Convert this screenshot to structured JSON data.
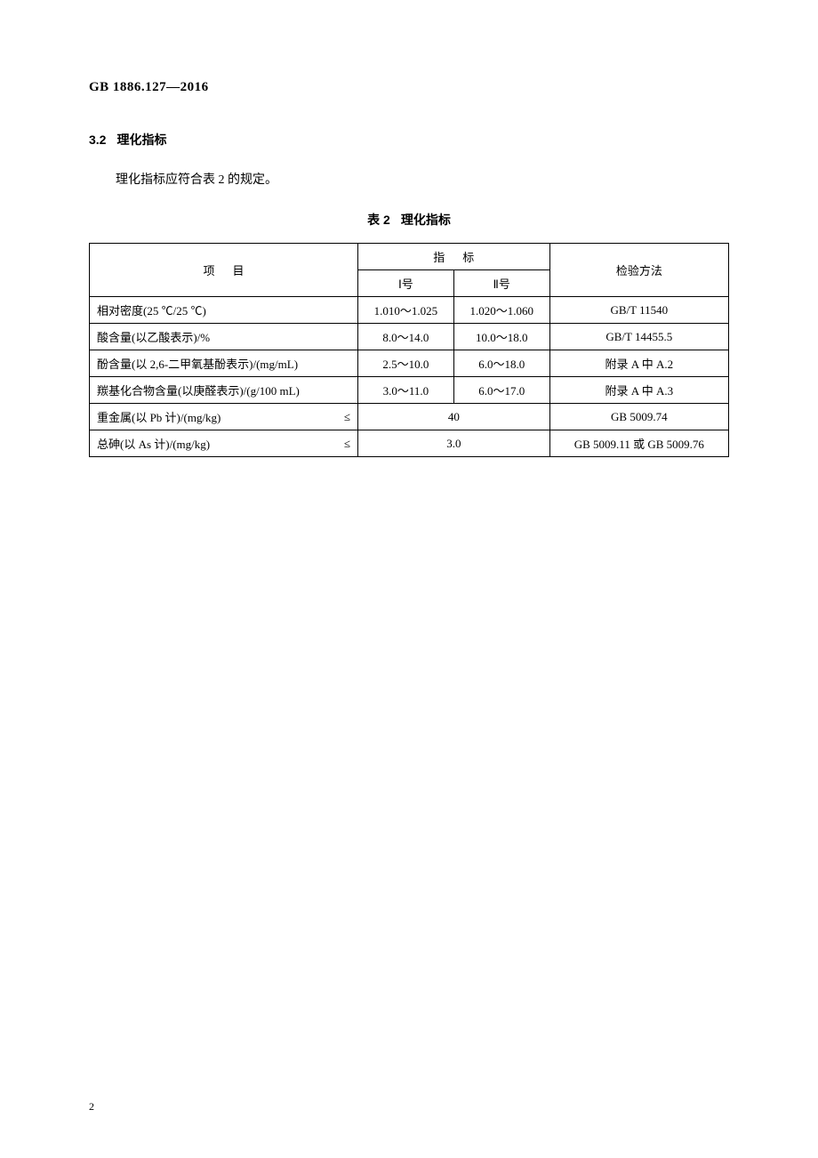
{
  "docCode": "GB 1886.127—2016",
  "section": {
    "num": "3.2",
    "title": "理化指标"
  },
  "bodyText": "理化指标应符合表 2 的规定。",
  "tableCaption": {
    "num": "表 2",
    "title": "理化指标"
  },
  "table": {
    "headers": {
      "item": "项目",
      "specGroup": "指标",
      "spec1": "Ⅰ号",
      "spec2": "Ⅱ号",
      "method": "检验方法"
    },
    "rows": [
      {
        "item": "相对密度(25 ℃/25 ℃)",
        "op": "",
        "spec1": "1.010～1.025",
        "spec2": "1.020～1.060",
        "merged": false,
        "method": "GB/T 11540"
      },
      {
        "item": "酸含量(以乙酸表示)/%",
        "op": "",
        "spec1": "8.0～14.0",
        "spec2": "10.0～18.0",
        "merged": false,
        "method": "GB/T 14455.5"
      },
      {
        "item": "酚含量(以 2,6-二甲氧基酚表示)/(mg/mL)",
        "op": "",
        "spec1": "2.5～10.0",
        "spec2": "6.0～18.0",
        "merged": false,
        "method": "附录 A 中 A.2"
      },
      {
        "item": "羰基化合物含量(以庚醛表示)/(g/100 mL)",
        "op": "",
        "spec1": "3.0～11.0",
        "spec2": "6.0～17.0",
        "merged": false,
        "method": "附录 A 中 A.3"
      },
      {
        "item": "重金属(以 Pb 计)/(mg/kg)",
        "op": "≤",
        "spec1": "40",
        "spec2": "",
        "merged": true,
        "method": "GB 5009.74"
      },
      {
        "item": "总砷(以 As 计)/(mg/kg)",
        "op": "≤",
        "spec1": "3.0",
        "spec2": "",
        "merged": true,
        "method": "GB 5009.11 或 GB 5009.76"
      }
    ]
  },
  "pageNumber": "2"
}
